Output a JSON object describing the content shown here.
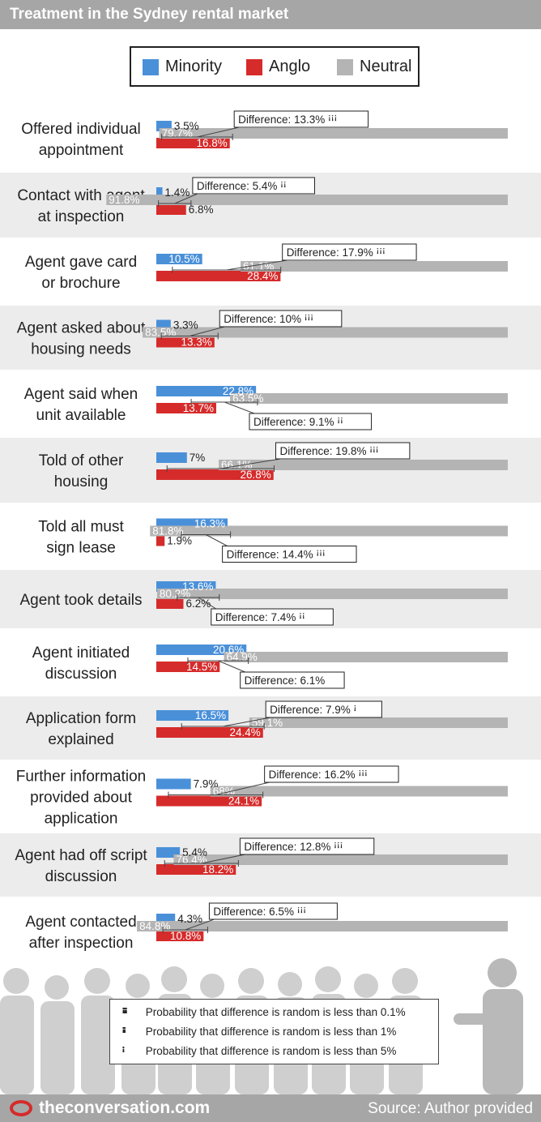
{
  "title": "Treatment in the Sydney rental market",
  "legend": {
    "minority": "Minority",
    "anglo": "Anglo",
    "neutral": "Neutral"
  },
  "colors": {
    "minority": "#4a90d9",
    "anglo": "#d62b2b",
    "neutral": "#b4b4b4",
    "band": "#ececec",
    "header": "#a6a6a6"
  },
  "chart_data": {
    "type": "bar",
    "orientation": "horizontal",
    "grid": false,
    "legend_position": "top",
    "categories": [
      [
        "Offered individual",
        "appointment"
      ],
      [
        "Contact with agent",
        "at inspection"
      ],
      [
        "Agent gave card",
        "or brochure"
      ],
      [
        "Agent asked about",
        "housing needs"
      ],
      [
        "Agent said when",
        "unit available"
      ],
      [
        "Told of other",
        "housing"
      ],
      [
        "Told all must",
        "sign lease"
      ],
      [
        "Agent took details"
      ],
      [
        "Agent initiated",
        "discussion"
      ],
      [
        "Application form",
        "explained"
      ],
      [
        "Further information",
        "provided about",
        "application"
      ],
      [
        "Agent had off script",
        "discussion"
      ],
      [
        "Agent contacted",
        "after inspection"
      ]
    ],
    "series": [
      {
        "name": "Minority",
        "values": [
          3.5,
          1.4,
          10.5,
          3.3,
          22.8,
          7,
          16.3,
          13.6,
          20.6,
          16.5,
          7.9,
          5.4,
          4.3
        ],
        "labels": [
          "3.5%",
          "1.4%",
          "10.5%",
          "3.3%",
          "22.8%",
          "7%",
          "16.3%",
          "13.6%",
          "20.6%",
          "16.5%",
          "7.9%",
          "5.4%",
          "4.3%"
        ]
      },
      {
        "name": "Anglo",
        "values": [
          16.8,
          6.8,
          28.4,
          13.3,
          13.7,
          26.8,
          1.9,
          6.2,
          14.5,
          24.4,
          24.1,
          18.2,
          10.8
        ],
        "labels": [
          "16.8%",
          "6.8%",
          "28.4%",
          "13.3%",
          "13.7%",
          "26.8%",
          "1.9%",
          "6.2%",
          "14.5%",
          "24.4%",
          "24.1%",
          "18.2%",
          "10.8%"
        ]
      },
      {
        "name": "Neutral",
        "values": [
          79.7,
          91.8,
          61.1,
          83.5,
          63.5,
          66.1,
          81.8,
          80.2,
          64.9,
          59.1,
          68,
          76.4,
          84.8
        ],
        "labels": [
          "79.7%",
          "91.8%",
          "61.1%",
          "83.5%",
          "63.5%",
          "66.1%",
          "81.8%",
          "80.2%",
          "64.9%",
          "59.1%",
          "68%",
          "76.4%",
          "84.8%"
        ]
      }
    ],
    "differences": [
      {
        "label": "Difference: 13.3%",
        "significance": 3,
        "placement": "above"
      },
      {
        "label": "Difference: 5.4%",
        "significance": 2,
        "placement": "above"
      },
      {
        "label": "Difference: 17.9%",
        "significance": 3,
        "placement": "above"
      },
      {
        "label": "Difference: 10%",
        "significance": 3,
        "placement": "above"
      },
      {
        "label": "Difference: 9.1%",
        "significance": 2,
        "placement": "below"
      },
      {
        "label": "Difference: 19.8%",
        "significance": 3,
        "placement": "above"
      },
      {
        "label": "Difference: 14.4%",
        "significance": 3,
        "placement": "below"
      },
      {
        "label": "Difference: 7.4%",
        "significance": 2,
        "placement": "below"
      },
      {
        "label": "Difference: 6.1%",
        "significance": 0,
        "placement": "below"
      },
      {
        "label": "Difference: 7.9%",
        "significance": 1,
        "placement": "above"
      },
      {
        "label": "Difference: 16.2%",
        "significance": 3,
        "placement": "above"
      },
      {
        "label": "Difference: 12.8%",
        "significance": 3,
        "placement": "above"
      },
      {
        "label": "Difference: 6.5%",
        "significance": 3,
        "placement": "above"
      }
    ],
    "xlim": [
      0,
      100
    ]
  },
  "significance_key": [
    {
      "pins": "ꜟꜟꜟ",
      "text": "Probability that difference is random is less than 0.1%"
    },
    {
      "pins": "ꜟꜟ",
      "text": "Probability that difference is random is less than 1%"
    },
    {
      "pins": "ꜟ",
      "text": "Probability that difference is random is less than 5%"
    }
  ],
  "footer": {
    "brand": "theconversation.com",
    "source": "Source: Author provided"
  }
}
